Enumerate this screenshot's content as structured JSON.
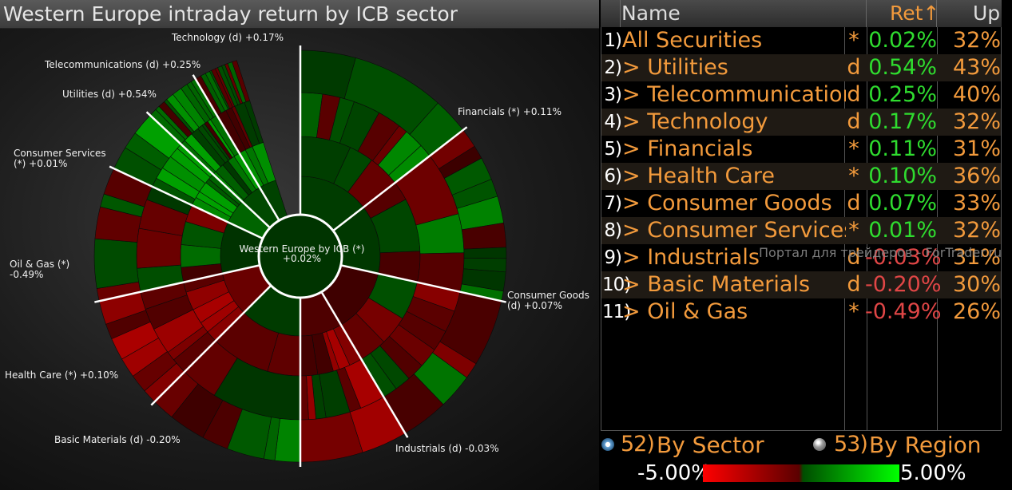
{
  "title": "Western Europe intraday return by ICB sector",
  "center": {
    "line1": "Western Europe by ICB (*)",
    "line2": "+0.02%"
  },
  "sector_labels": [
    {
      "text": "Technology (d) +0.17%"
    },
    {
      "text": "Telecommunications (d) +0.25%"
    },
    {
      "text": "Utilities (d) +0.54%"
    },
    {
      "text": "Consumer Services",
      "text2": "(*) +0.01%"
    },
    {
      "text": "Oil & Gas (*)",
      "text2": "-0.49%"
    },
    {
      "text": "Health Care (*) +0.10%"
    },
    {
      "text": "Basic Materials (d) -0.20%"
    },
    {
      "text": "Industrials (d) -0.03%"
    },
    {
      "text": "Consumer Goods",
      "text2": "(d) +0.07%"
    },
    {
      "text": "Financials (*) +0.11%"
    }
  ],
  "table": {
    "headers": {
      "name": "Name",
      "ret": "Ret↑",
      "up": "Up"
    },
    "rows": [
      {
        "num": "1)",
        "name": "All Securities",
        "mark": "*",
        "ret": "0.02%",
        "up": "32%"
      },
      {
        "num": "2)",
        "name": "> Utilities",
        "mark": "d",
        "ret": "0.54%",
        "up": "43%"
      },
      {
        "num": "3)",
        "name": "> Telecommunications",
        "mark": "d",
        "ret": "0.25%",
        "up": "40%"
      },
      {
        "num": "4)",
        "name": "> Technology",
        "mark": "d",
        "ret": "0.17%",
        "up": "32%"
      },
      {
        "num": "5)",
        "name": "> Financials",
        "mark": "*",
        "ret": "0.11%",
        "up": "31%"
      },
      {
        "num": "6)",
        "name": "> Health Care",
        "mark": "*",
        "ret": "0.10%",
        "up": "36%"
      },
      {
        "num": "7)",
        "name": "> Consumer Goods",
        "mark": "d",
        "ret": "0.07%",
        "up": "33%"
      },
      {
        "num": "8)",
        "name": "> Consumer Services",
        "mark": "*",
        "ret": "0.01%",
        "up": "32%"
      },
      {
        "num": "9)",
        "name": "> Industrials",
        "mark": "d",
        "ret": "-0.03%",
        "up": "31%"
      },
      {
        "num": "10)",
        "name": "> Basic Materials",
        "mark": "d",
        "ret": "-0.20%",
        "up": "30%"
      },
      {
        "num": "11)",
        "name": "> Oil & Gas",
        "mark": "*",
        "ret": "-0.49%",
        "up": "26%"
      }
    ]
  },
  "watermark": "Портал для трейдеров - ForTrader.ru",
  "options": {
    "sector": {
      "num": "52)",
      "label": "By Sector",
      "selected": true
    },
    "region": {
      "num": "53)",
      "label": "By Region",
      "selected": false
    }
  },
  "scale": {
    "min": "-5.00%",
    "max": "5.00%"
  },
  "colors": {
    "positive": "#2fdc2f",
    "negative": "#e04646",
    "accent": "#f29a3c"
  },
  "chart_data": {
    "type": "sunburst",
    "title": "Western Europe intraday return by ICB sector",
    "color_scale": {
      "min": -5.0,
      "max": 5.0
    },
    "root": {
      "name": "Western Europe by ICB",
      "value": 0.02
    },
    "sectors": [
      {
        "name": "Financials",
        "ret": 0.11,
        "share": 0.145
      },
      {
        "name": "Consumer Goods",
        "ret": 0.07,
        "share": 0.14
      },
      {
        "name": "Industrials",
        "ret": -0.03,
        "share": 0.13
      },
      {
        "name": "Basic Materials",
        "ret": -0.2,
        "share": 0.085
      },
      {
        "name": "Health Care",
        "ret": 0.1,
        "share": 0.125
      },
      {
        "name": "Oil & Gas",
        "ret": -0.49,
        "share": 0.09
      },
      {
        "name": "Consumer Services",
        "ret": 0.01,
        "share": 0.105
      },
      {
        "name": "Utilities",
        "ret": 0.54,
        "share": 0.05
      },
      {
        "name": "Telecommunications",
        "ret": 0.25,
        "share": 0.045
      },
      {
        "name": "Technology",
        "ret": 0.17,
        "share": 0.035
      }
    ]
  }
}
